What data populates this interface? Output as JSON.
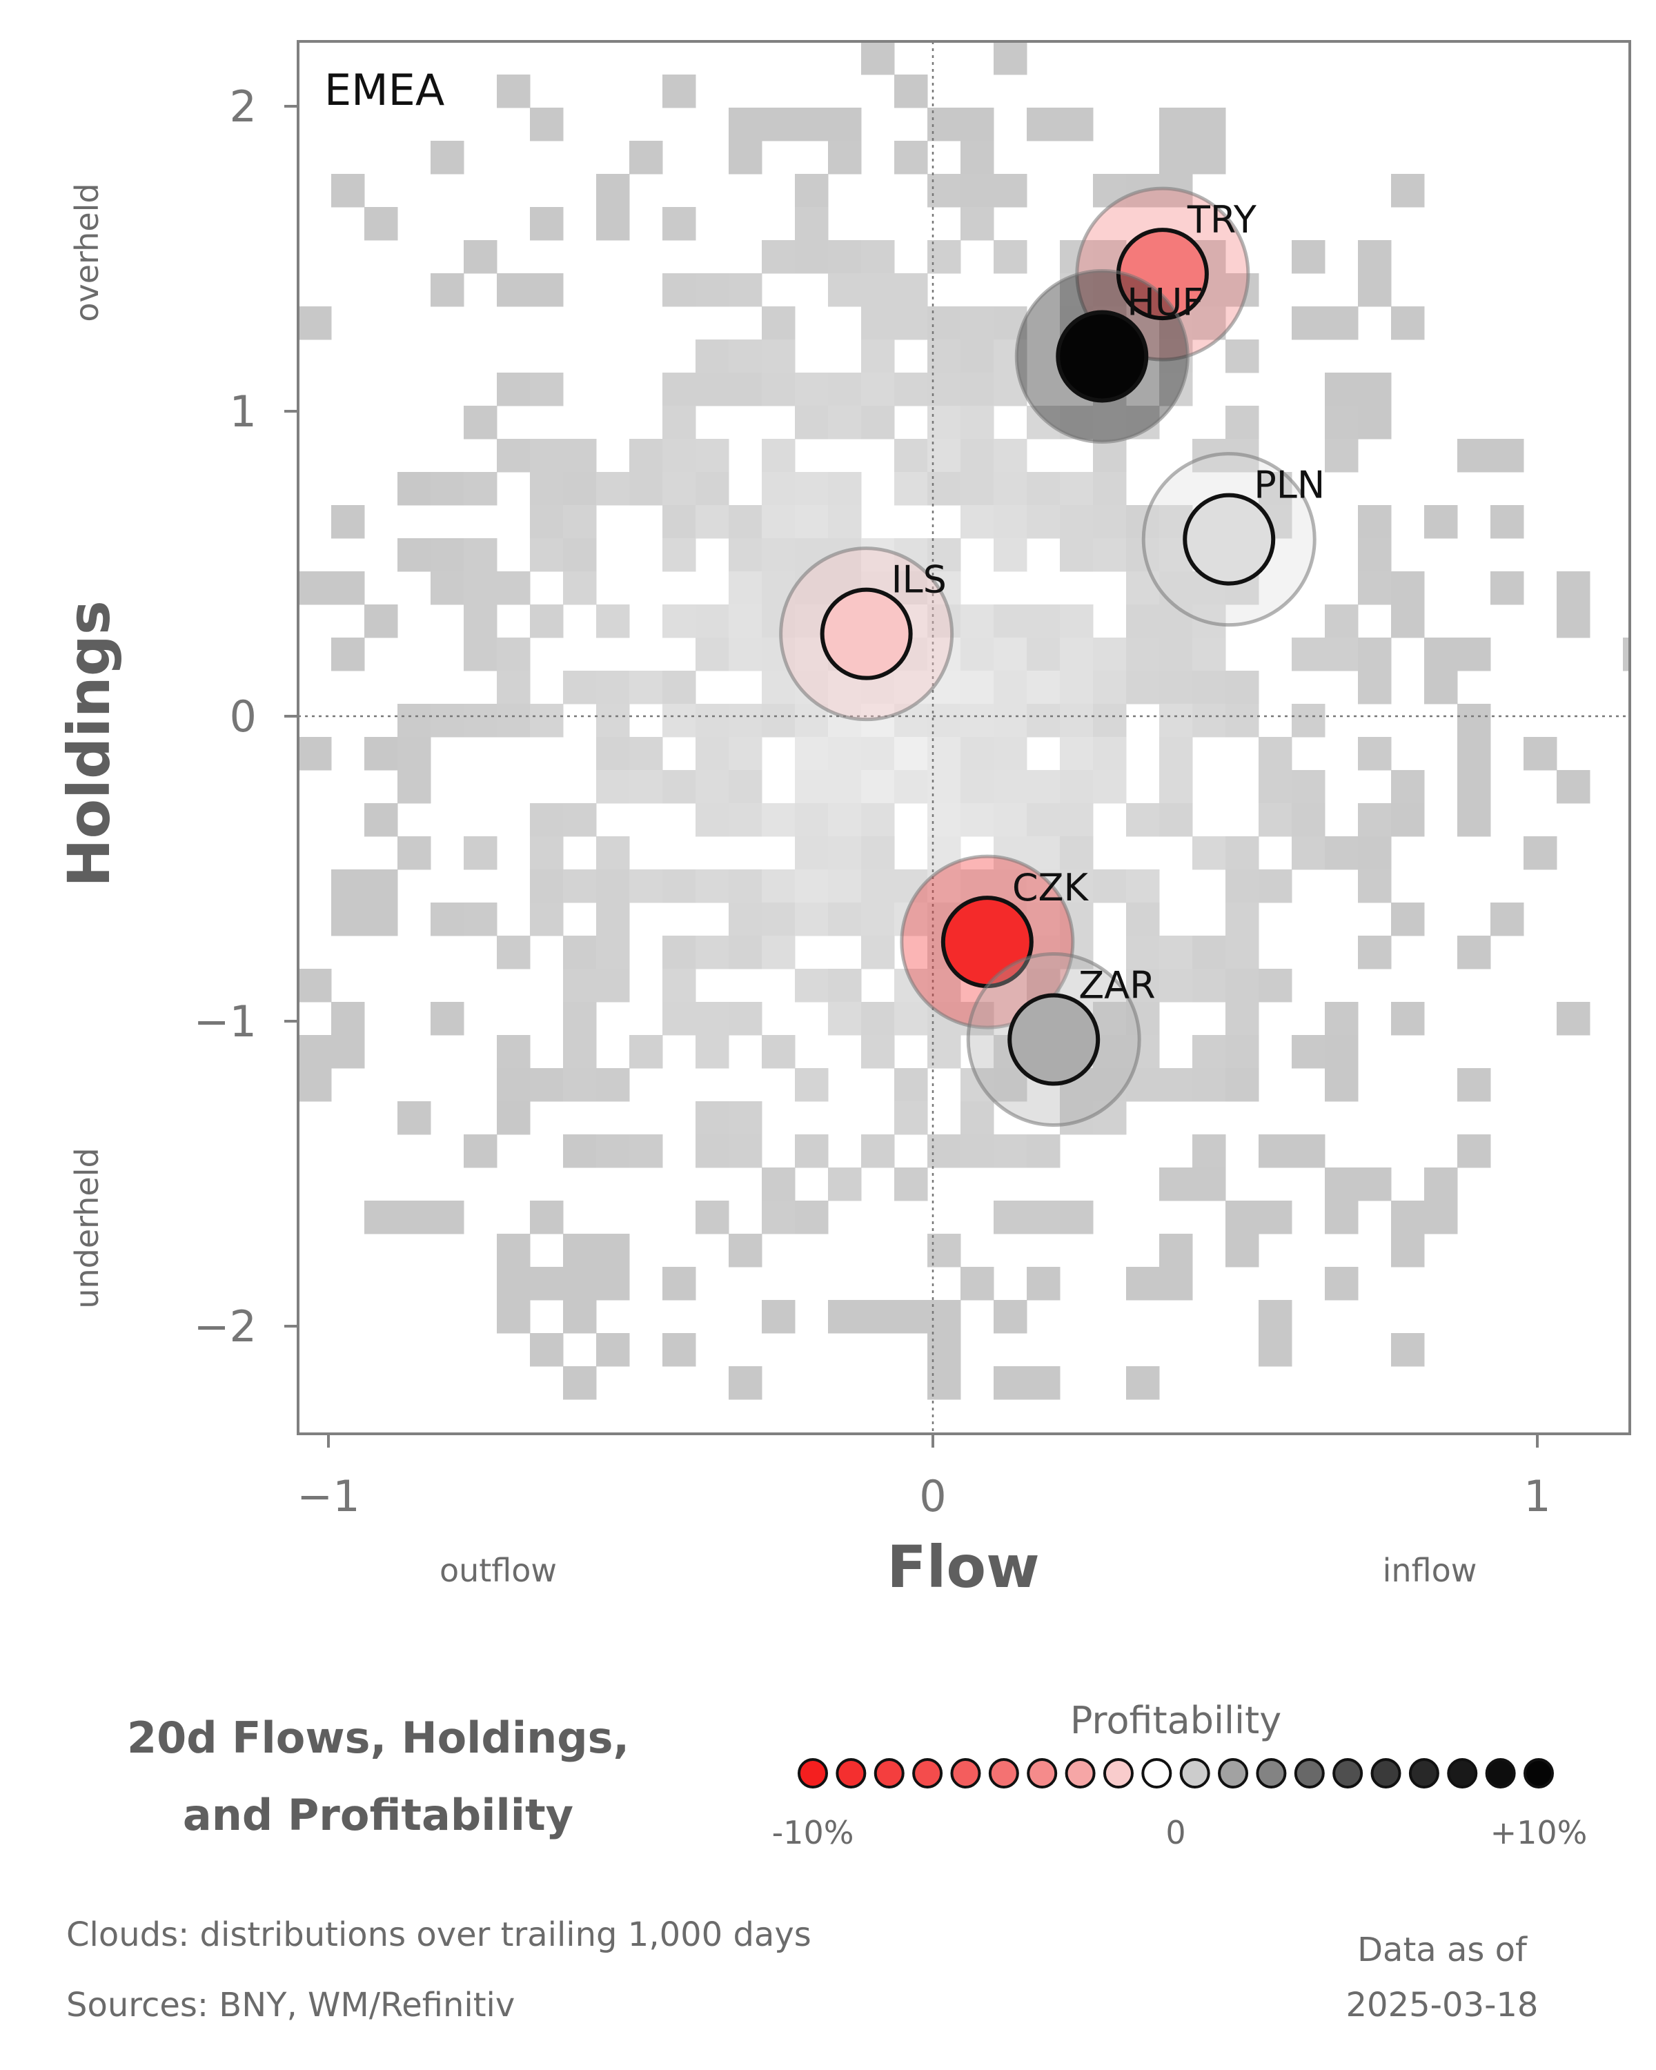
{
  "chart_data": {
    "type": "scatter",
    "panel_label": "EMEA",
    "xlabel": "Flow",
    "ylabel": "Holdings",
    "x_side_labels": {
      "left": "outflow",
      "right": "inflow"
    },
    "y_side_labels": {
      "top": "overheld",
      "bottom": "underheld"
    },
    "xlim": [
      -1.05,
      1.15
    ],
    "ylim": [
      -2.35,
      2.2
    ],
    "xticks": [
      -1,
      0,
      1
    ],
    "xtick_labels": [
      "−1",
      "0",
      "1"
    ],
    "yticks": [
      -2,
      -1,
      0,
      1,
      2
    ],
    "ytick_labels": [
      "−2",
      "−1",
      "0",
      "1",
      "2"
    ],
    "reference_lines": {
      "x": 0,
      "y": 0,
      "style": "dotted"
    },
    "background": "2D histogram clouds in greyscale",
    "points": [
      {
        "label": "TRY",
        "x": 0.38,
        "y": 1.45,
        "color": "#f47a7a"
      },
      {
        "label": "HUF",
        "x": 0.28,
        "y": 1.18,
        "color": "#050505"
      },
      {
        "label": "PLN",
        "x": 0.49,
        "y": 0.58,
        "color": "#dedede"
      },
      {
        "label": "ILS",
        "x": -0.11,
        "y": 0.27,
        "color": "#f9c6c6"
      },
      {
        "label": "CZK",
        "x": 0.09,
        "y": -0.74,
        "color": "#f42a2a"
      },
      {
        "label": "ZAR",
        "x": 0.2,
        "y": -1.06,
        "color": "#acacac"
      }
    ],
    "title_lines": [
      "20d Flows, Holdings,",
      "and Profitability"
    ],
    "legend": {
      "title": "Profitability",
      "tick_labels": [
        "-10%",
        "0",
        "+10%"
      ],
      "colors": [
        "#f41f1f",
        "#f42f2f",
        "#f43e3e",
        "#f44c4c",
        "#f45d5d",
        "#f47272",
        "#f58b8b",
        "#f6a6a6",
        "#f9cccc",
        "#ffffff",
        "#cccccc",
        "#a2a2a2",
        "#838383",
        "#686868",
        "#4f4f4f",
        "#3a3a3a",
        "#282828",
        "#191919",
        "#0d0d0d",
        "#050505"
      ]
    }
  },
  "footer": {
    "clouds_note": "Clouds:  distributions over trailing 1,000 days",
    "sources": "Sources:  BNY, WM/Refinitiv",
    "data_as_of_label": "Data as of",
    "data_as_of_date": "2025-03-18"
  }
}
